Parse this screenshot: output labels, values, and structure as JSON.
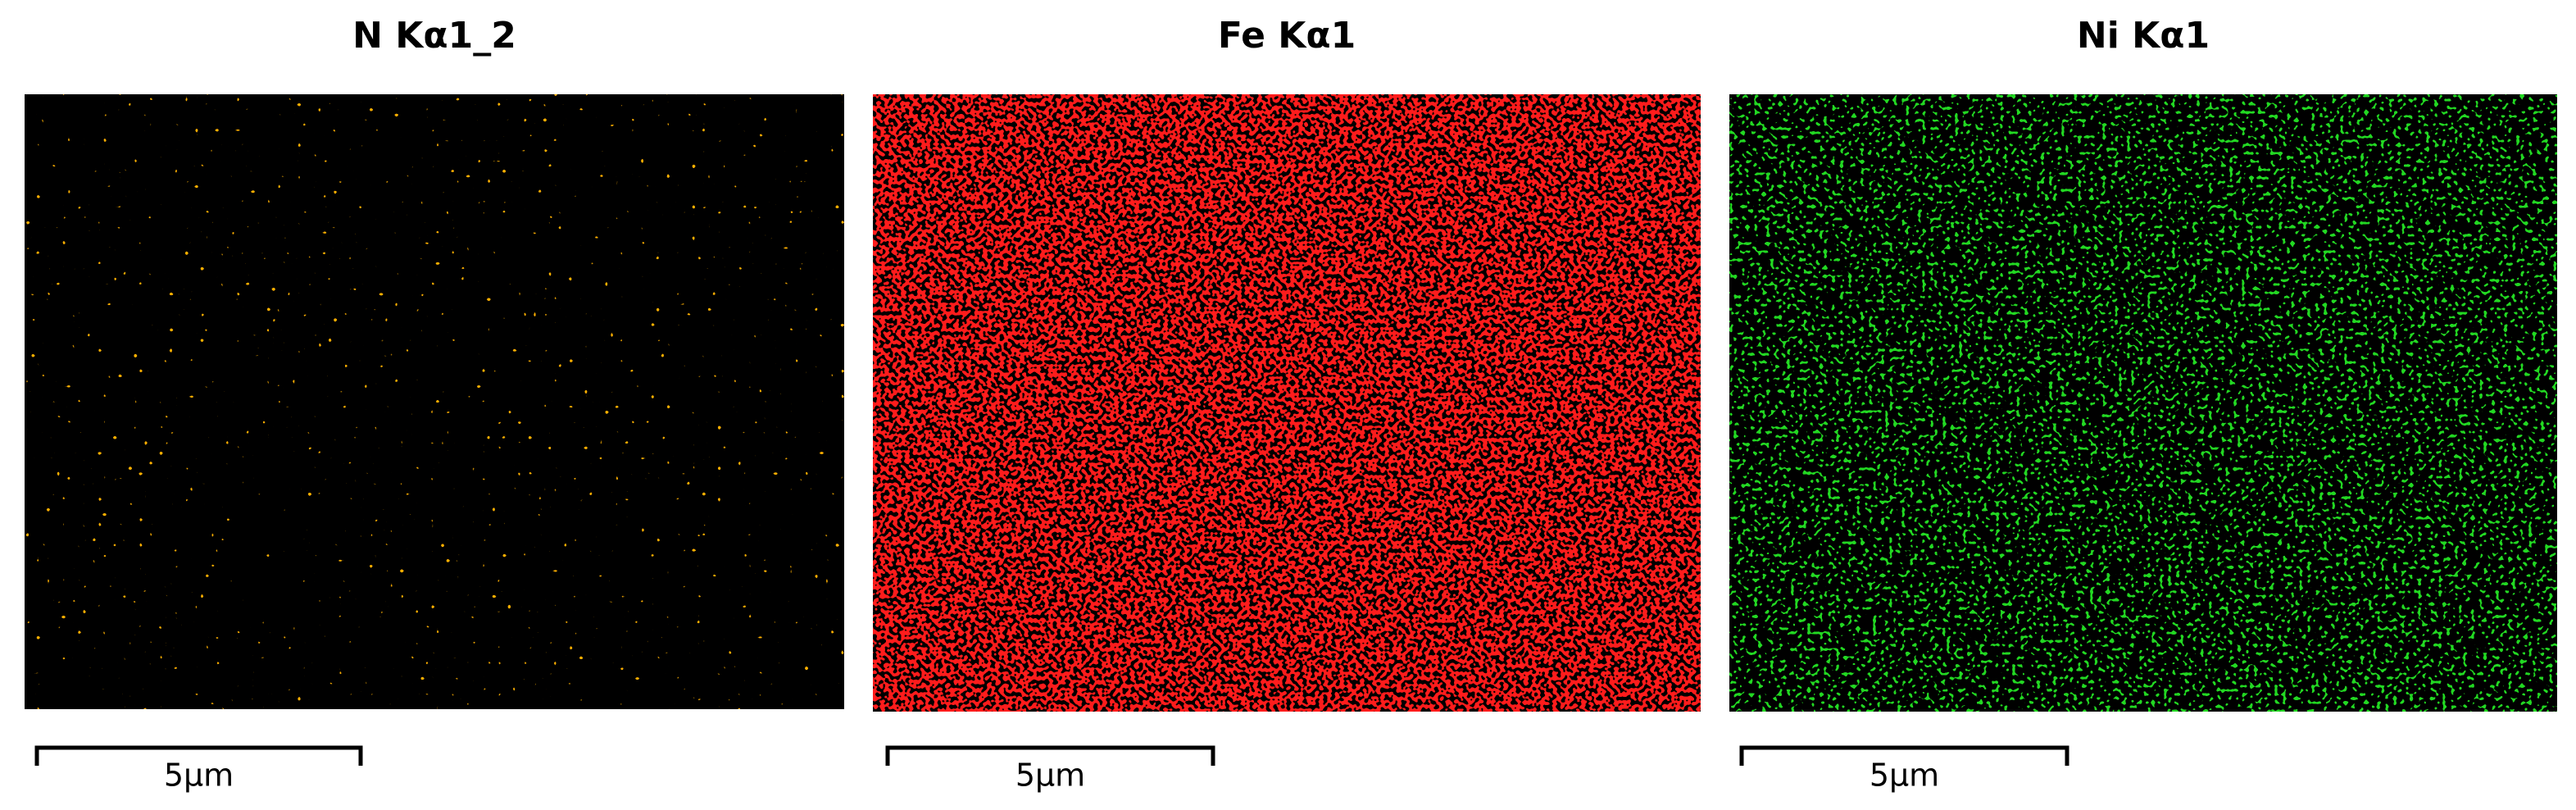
{
  "panels": [
    {
      "title": "N Kα1_2",
      "scale_label": "5μm",
      "color": "#ffb000"
    },
    {
      "title": "Fe Kα1",
      "scale_label": "5μm",
      "color": "#ff1a1a"
    },
    {
      "title": "Ni Kα1",
      "scale_label": "5μm",
      "color": "#22d822"
    }
  ]
}
